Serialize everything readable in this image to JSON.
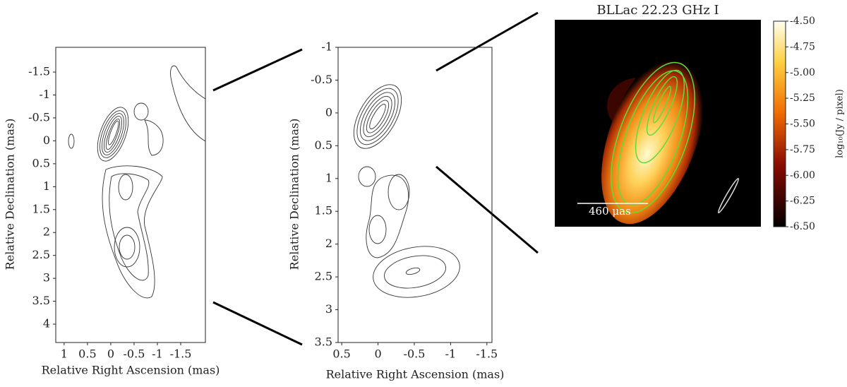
{
  "chart_data": [
    {
      "type": "contour",
      "xlabel": "Relative Right Ascension (mas)",
      "ylabel": "Relative Declination (mas)",
      "xlim": [
        1.18,
        -2.03
      ],
      "ylim": [
        -2.04,
        4.4
      ],
      "xticks": [
        1,
        0.5,
        0,
        -0.5,
        -1,
        -1.5
      ],
      "yticks": [
        -1.5,
        -1,
        -0.5,
        0,
        0.5,
        1,
        1.5,
        2,
        2.5,
        3,
        3.5,
        4
      ]
    },
    {
      "type": "contour",
      "xlabel": "Relative Right Ascension (mas)",
      "ylabel": "Relative Declination (mas)",
      "xlim": [
        0.55,
        -1.57
      ],
      "ylim": [
        -1,
        3.5
      ],
      "xticks": [
        0.5,
        0,
        -0.5,
        -1,
        -1.5
      ],
      "yticks": [
        -1,
        -0.5,
        0,
        0.5,
        1,
        1.5,
        2,
        2.5,
        3,
        3.5
      ]
    },
    {
      "type": "image",
      "title": "BLLac 22.23 GHz I",
      "colorbar_label": "log₁₀(Jy / pixel)",
      "annotation": "460 μas",
      "clim": [
        -6.5,
        -4.5
      ],
      "cticks": [
        {
          "value": -4.5,
          "label": "-4.50"
        },
        {
          "value": -4.75,
          "label": "-4.75"
        },
        {
          "value": -5.0,
          "label": "-5.00"
        },
        {
          "value": -5.25,
          "label": "-5.25"
        },
        {
          "value": -5.5,
          "label": "-5.50"
        },
        {
          "value": -5.75,
          "label": "-5.75"
        },
        {
          "value": -6.0,
          "label": "-6.00"
        },
        {
          "value": -6.25,
          "label": "-6.25"
        },
        {
          "value": -6.5,
          "label": "-6.50"
        }
      ]
    }
  ]
}
